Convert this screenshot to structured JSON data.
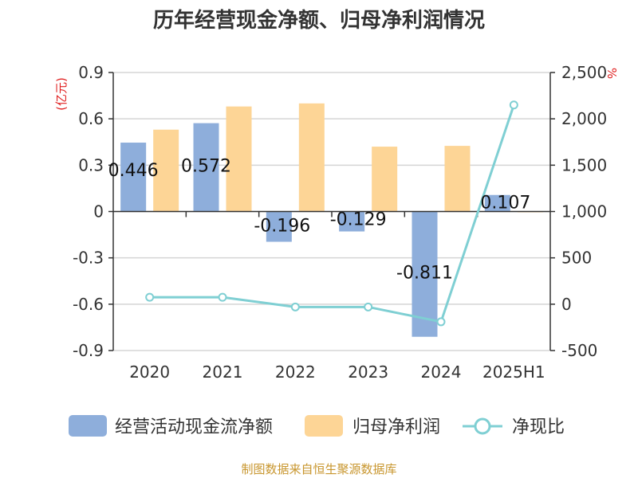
{
  "chart_data": {
    "type": "bar",
    "title": "历年经营现金净额、归母净利润情况",
    "categories": [
      "2020",
      "2021",
      "2022",
      "2023",
      "2024",
      "2025H1"
    ],
    "y_left": {
      "unit": "(亿元)",
      "ylim": [
        -0.9,
        0.9
      ],
      "ticks": [
        "0.9",
        "0.6",
        "0.3",
        "0",
        "-0.3",
        "-0.6",
        "-0.9"
      ],
      "tick_values": [
        0.9,
        0.6,
        0.3,
        0,
        -0.3,
        -0.6,
        -0.9
      ]
    },
    "y_right": {
      "unit": "%",
      "ylim": [
        -500,
        2500
      ],
      "ticks": [
        "2,500",
        "2,000",
        "1,500",
        "1,000",
        "500",
        "0",
        "-500"
      ],
      "tick_values": [
        2500,
        2000,
        1500,
        1000,
        500,
        0,
        -500
      ]
    },
    "series": [
      {
        "name": "经营活动现金流净额",
        "type": "bar",
        "axis": "left",
        "color": "#8eaedb",
        "values": [
          0.446,
          0.572,
          -0.196,
          -0.129,
          -0.811,
          0.107
        ],
        "labels": [
          "0.446",
          "0.572",
          "-0.196",
          "-0.129",
          "-0.811",
          "0.107"
        ]
      },
      {
        "name": "归母净利润",
        "type": "bar",
        "axis": "left",
        "color": "#fdd596",
        "values": [
          0.53,
          0.68,
          0.7,
          0.42,
          0.425,
          0.0
        ]
      },
      {
        "name": "净现比",
        "type": "line",
        "axis": "right",
        "color": "#7fcfd3",
        "values": [
          75,
          75,
          -30,
          -30,
          -190,
          2150
        ]
      }
    ],
    "grid": true,
    "legend_position": "bottom"
  },
  "source": "制图数据来自恒生聚源数据库"
}
